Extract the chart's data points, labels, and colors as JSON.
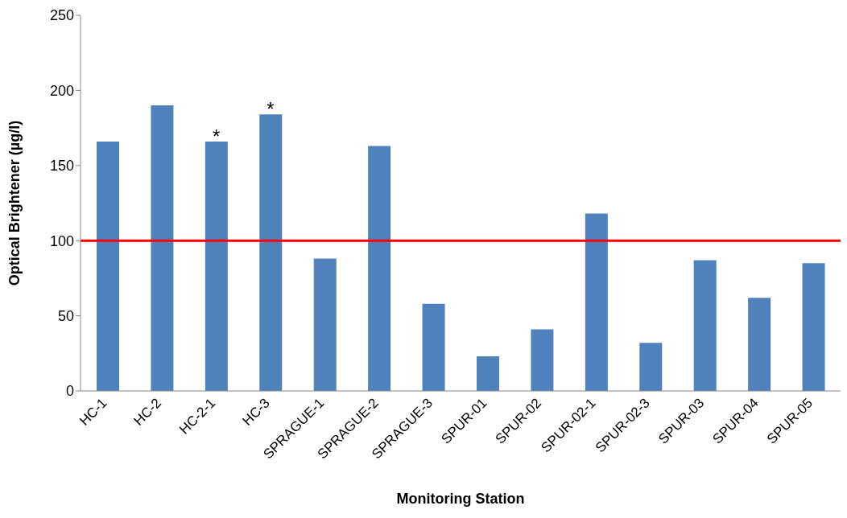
{
  "chart_data": {
    "type": "bar",
    "xlabel": "Monitoring Station",
    "ylabel": "Optical Brightener (µg/l)",
    "categories": [
      "HC-1",
      "HC-2",
      "HC-2-1",
      "HC-3",
      "SPRAGUE-1",
      "SPRAGUE-2",
      "SPRAGUE-3",
      "SPUR-01",
      "SPUR-02",
      "SPUR-02-1",
      "SPUR-02-3",
      "SPUR-03",
      "SPUR-04",
      "SPUR-05"
    ],
    "values": [
      166,
      190,
      166,
      184,
      88,
      163,
      58,
      23,
      41,
      118,
      32,
      87,
      62,
      85
    ],
    "color": "#4f81bd",
    "ylim": [
      0,
      250
    ],
    "yticks": [
      0,
      50,
      100,
      150,
      200,
      250
    ],
    "grid": false,
    "ref_lines": [
      {
        "axis": "y",
        "value": 100,
        "color": "#ff0000"
      }
    ],
    "annotations": [
      {
        "text": "*",
        "x": "HC-2-1",
        "y": 166
      },
      {
        "text": "*",
        "x": "HC-3",
        "y": 184
      }
    ]
  }
}
